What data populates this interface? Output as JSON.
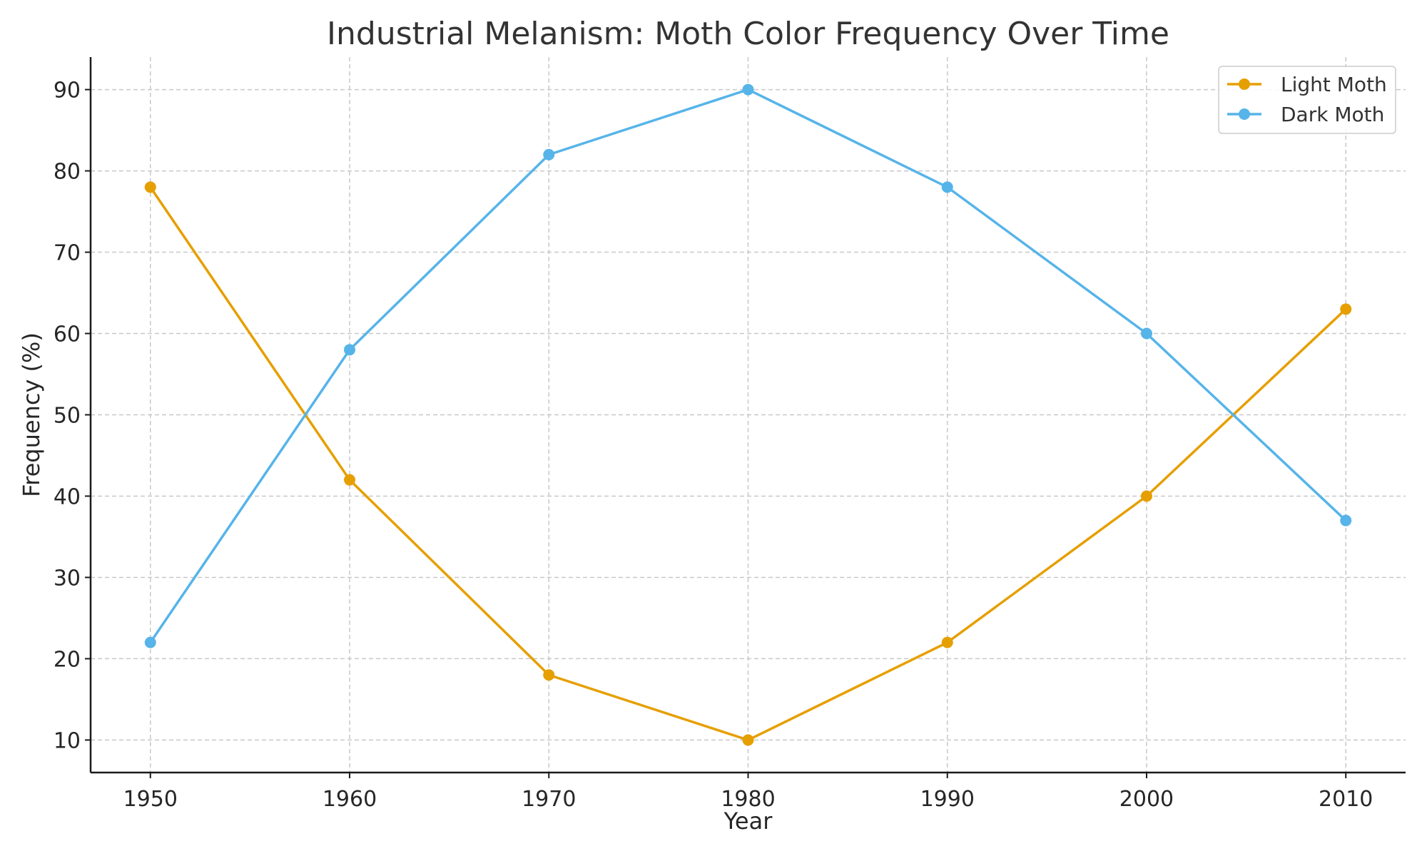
{
  "chart_data": {
    "type": "line",
    "title": "Industrial Melanism: Moth Color Frequency Over Time",
    "xlabel": "Year",
    "ylabel": "Frequency (%)",
    "x": [
      1950,
      1960,
      1970,
      1980,
      1990,
      2000,
      2010
    ],
    "x_tick_labels": [
      "1950",
      "1960",
      "1970",
      "1980",
      "1990",
      "2000",
      "2010"
    ],
    "y_ticks": [
      10,
      20,
      30,
      40,
      50,
      60,
      70,
      80,
      90
    ],
    "y_tick_labels": [
      "10",
      "20",
      "30",
      "40",
      "50",
      "60",
      "70",
      "80",
      "90"
    ],
    "xlim": [
      1947,
      2013
    ],
    "ylim": [
      6,
      94
    ],
    "grid": true,
    "legend_position": "top-right",
    "series": [
      {
        "name": "Light Moth",
        "color": "#E69F00",
        "values": [
          78,
          42,
          18,
          10,
          22,
          40,
          63
        ]
      },
      {
        "name": "Dark Moth",
        "color": "#56B4E9",
        "values": [
          22,
          58,
          82,
          90,
          78,
          60,
          37
        ]
      }
    ]
  }
}
